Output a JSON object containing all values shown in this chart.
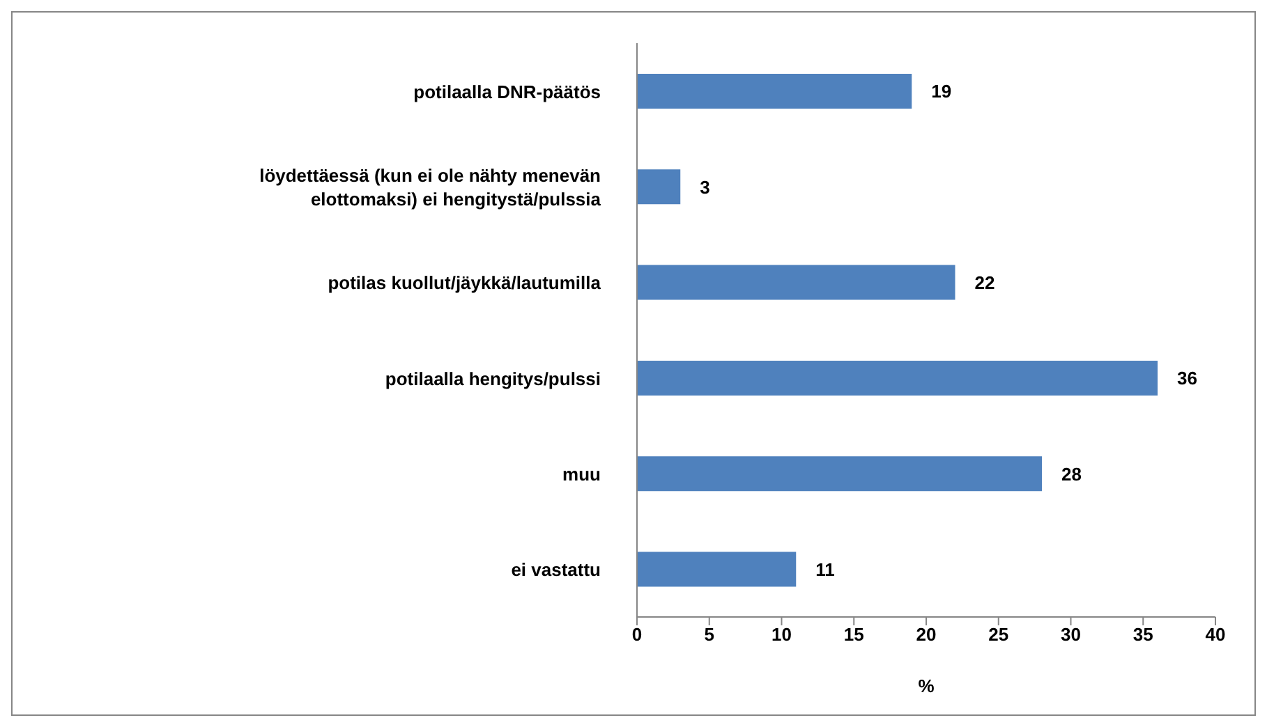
{
  "chart_data": {
    "type": "bar",
    "orientation": "horizontal",
    "xlabel": "%",
    "categories": [
      "potilaalla DNR-päätös",
      "löydettäessä (kun ei ole nähty menevän elottomaksi) ei hengitystä/pulssia",
      "potilas kuollut/jäykkä/lautumilla",
      "potilaalla hengitys/pulssi",
      "muu",
      "ei vastattu"
    ],
    "values": [
      19,
      3,
      22,
      36,
      28,
      11
    ],
    "color": "#4f81bd",
    "xlim": [
      0,
      40
    ],
    "xticks": [
      0,
      5,
      10,
      15,
      20,
      25,
      30,
      35,
      40
    ],
    "data_labels": true,
    "grid": false,
    "legend": false
  }
}
